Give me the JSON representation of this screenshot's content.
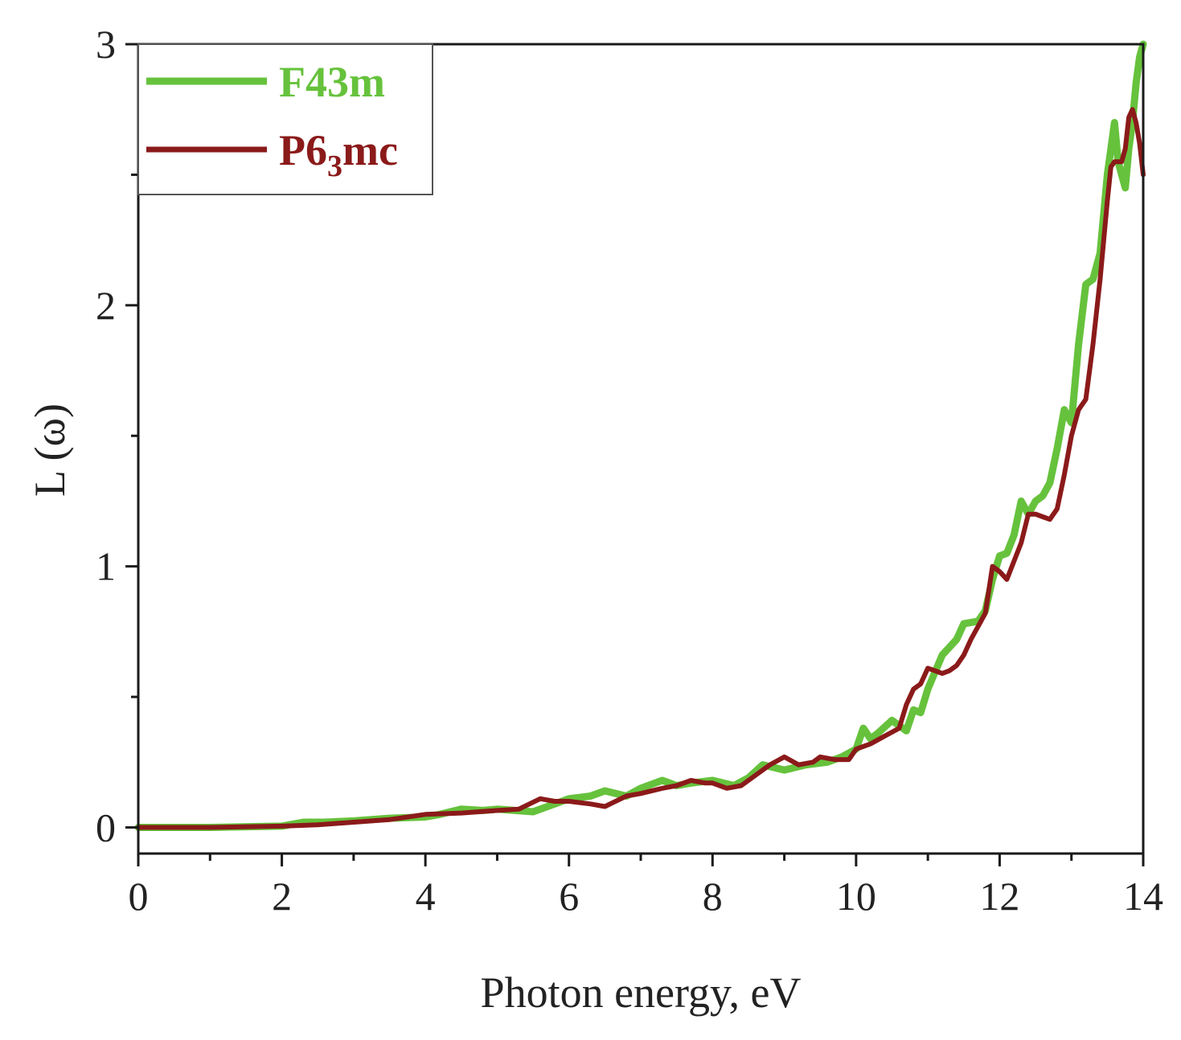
{
  "chart_data": {
    "type": "line",
    "xlabel": "Photon energy, eV",
    "ylabel": "L (ω)",
    "xlim": [
      0,
      14
    ],
    "ylim": [
      -0.1,
      3
    ],
    "xticks": [
      0,
      2,
      4,
      6,
      8,
      10,
      12,
      14
    ],
    "xtick_labels": [
      "0",
      "2",
      "4",
      "6",
      "8",
      "10",
      "12",
      "14"
    ],
    "yticks": [
      0,
      1,
      2,
      3
    ],
    "ytick_labels": [
      "0",
      "1",
      "2",
      "3"
    ],
    "grid": false,
    "legend": {
      "position": "top-left",
      "entries": [
        {
          "label": "F43m",
          "color": "#66c23c"
        },
        {
          "label": "P6",
          "subscript": "3",
          "suffix": "mc",
          "color": "#8b1a1a"
        }
      ]
    },
    "series": [
      {
        "name": "F43m",
        "color": "#66c23c",
        "x": [
          0,
          1,
          2,
          2.3,
          2.6,
          3,
          3.5,
          4,
          4.2,
          4.5,
          4.8,
          5,
          5.5,
          5.8,
          6,
          6.3,
          6.5,
          6.8,
          7,
          7.3,
          7.5,
          7.7,
          8,
          8.3,
          8.5,
          8.7,
          9,
          9.3,
          9.6,
          9.8,
          10,
          10.1,
          10.2,
          10.3,
          10.5,
          10.7,
          10.8,
          10.9,
          11,
          11.2,
          11.3,
          11.4,
          11.5,
          11.7,
          11.8,
          11.9,
          12,
          12.1,
          12.2,
          12.3,
          12.4,
          12.5,
          12.6,
          12.7,
          12.8,
          12.9,
          13,
          13.1,
          13.2,
          13.3,
          13.4,
          13.5,
          13.6,
          13.65,
          13.7,
          13.75,
          13.8,
          13.85,
          13.9,
          13.95,
          14
        ],
        "y": [
          0,
          0,
          0.005,
          0.02,
          0.02,
          0.025,
          0.035,
          0.04,
          0.05,
          0.07,
          0.065,
          0.07,
          0.06,
          0.09,
          0.11,
          0.12,
          0.14,
          0.12,
          0.15,
          0.18,
          0.16,
          0.17,
          0.18,
          0.16,
          0.19,
          0.24,
          0.22,
          0.24,
          0.25,
          0.27,
          0.3,
          0.38,
          0.34,
          0.36,
          0.41,
          0.37,
          0.45,
          0.44,
          0.53,
          0.66,
          0.69,
          0.72,
          0.78,
          0.79,
          0.83,
          0.95,
          1.04,
          1.05,
          1.12,
          1.25,
          1.2,
          1.25,
          1.27,
          1.32,
          1.45,
          1.6,
          1.55,
          1.85,
          2.08,
          2.1,
          2.2,
          2.5,
          2.7,
          2.55,
          2.5,
          2.45,
          2.6,
          2.7,
          2.85,
          2.95,
          3.0
        ]
      },
      {
        "name": "P63mc",
        "color": "#8b1a1a",
        "x": [
          0,
          1,
          2,
          2.5,
          3,
          3.5,
          4,
          4.5,
          5,
          5.3,
          5.6,
          5.8,
          6,
          6.3,
          6.5,
          6.8,
          7,
          7.3,
          7.5,
          7.7,
          7.9,
          8,
          8.2,
          8.4,
          8.6,
          8.8,
          9,
          9.2,
          9.4,
          9.5,
          9.7,
          9.9,
          10,
          10.2,
          10.4,
          10.6,
          10.7,
          10.8,
          10.9,
          11,
          11.1,
          11.2,
          11.3,
          11.4,
          11.5,
          11.6,
          11.8,
          11.9,
          12,
          12.1,
          12.2,
          12.3,
          12.4,
          12.5,
          12.6,
          12.7,
          12.8,
          12.9,
          13,
          13.1,
          13.2,
          13.3,
          13.4,
          13.5,
          13.55,
          13.6,
          13.7,
          13.75,
          13.8,
          13.85,
          13.9,
          13.95,
          14
        ],
        "y": [
          0,
          0,
          0.005,
          0.01,
          0.02,
          0.03,
          0.05,
          0.055,
          0.065,
          0.07,
          0.11,
          0.1,
          0.1,
          0.09,
          0.08,
          0.12,
          0.13,
          0.15,
          0.16,
          0.18,
          0.17,
          0.17,
          0.15,
          0.16,
          0.2,
          0.24,
          0.27,
          0.24,
          0.25,
          0.27,
          0.26,
          0.26,
          0.3,
          0.32,
          0.35,
          0.38,
          0.47,
          0.53,
          0.55,
          0.61,
          0.6,
          0.59,
          0.6,
          0.62,
          0.66,
          0.72,
          0.82,
          1.0,
          0.98,
          0.95,
          1.02,
          1.09,
          1.2,
          1.2,
          1.19,
          1.18,
          1.22,
          1.35,
          1.5,
          1.6,
          1.64,
          1.85,
          2.1,
          2.4,
          2.53,
          2.55,
          2.55,
          2.6,
          2.72,
          2.75,
          2.7,
          2.62,
          2.5
        ]
      }
    ]
  }
}
